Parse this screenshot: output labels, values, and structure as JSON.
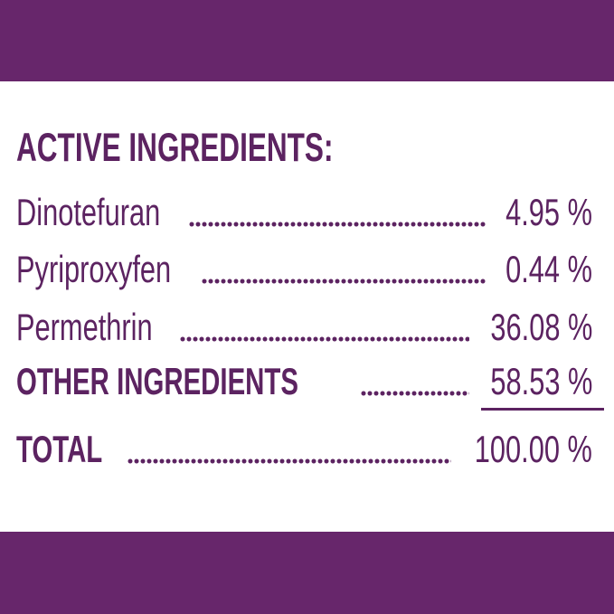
{
  "colors": {
    "bar_purple": "#67266B",
    "text_purple": "#5C2361",
    "background": "#FFFFFF"
  },
  "label": {
    "heading": "ACTIVE INGREDIENTS:",
    "rows": [
      {
        "name": "Dinotefuran",
        "value": "4.95 %"
      },
      {
        "name": "Pyriproxyfen",
        "value": "0.44 %"
      },
      {
        "name": "Permethrin",
        "value": "36.08 %"
      },
      {
        "name": "OTHER INGREDIENTS",
        "value": "58.53 %"
      },
      {
        "name": "TOTAL",
        "value": "100.00 %"
      }
    ]
  }
}
